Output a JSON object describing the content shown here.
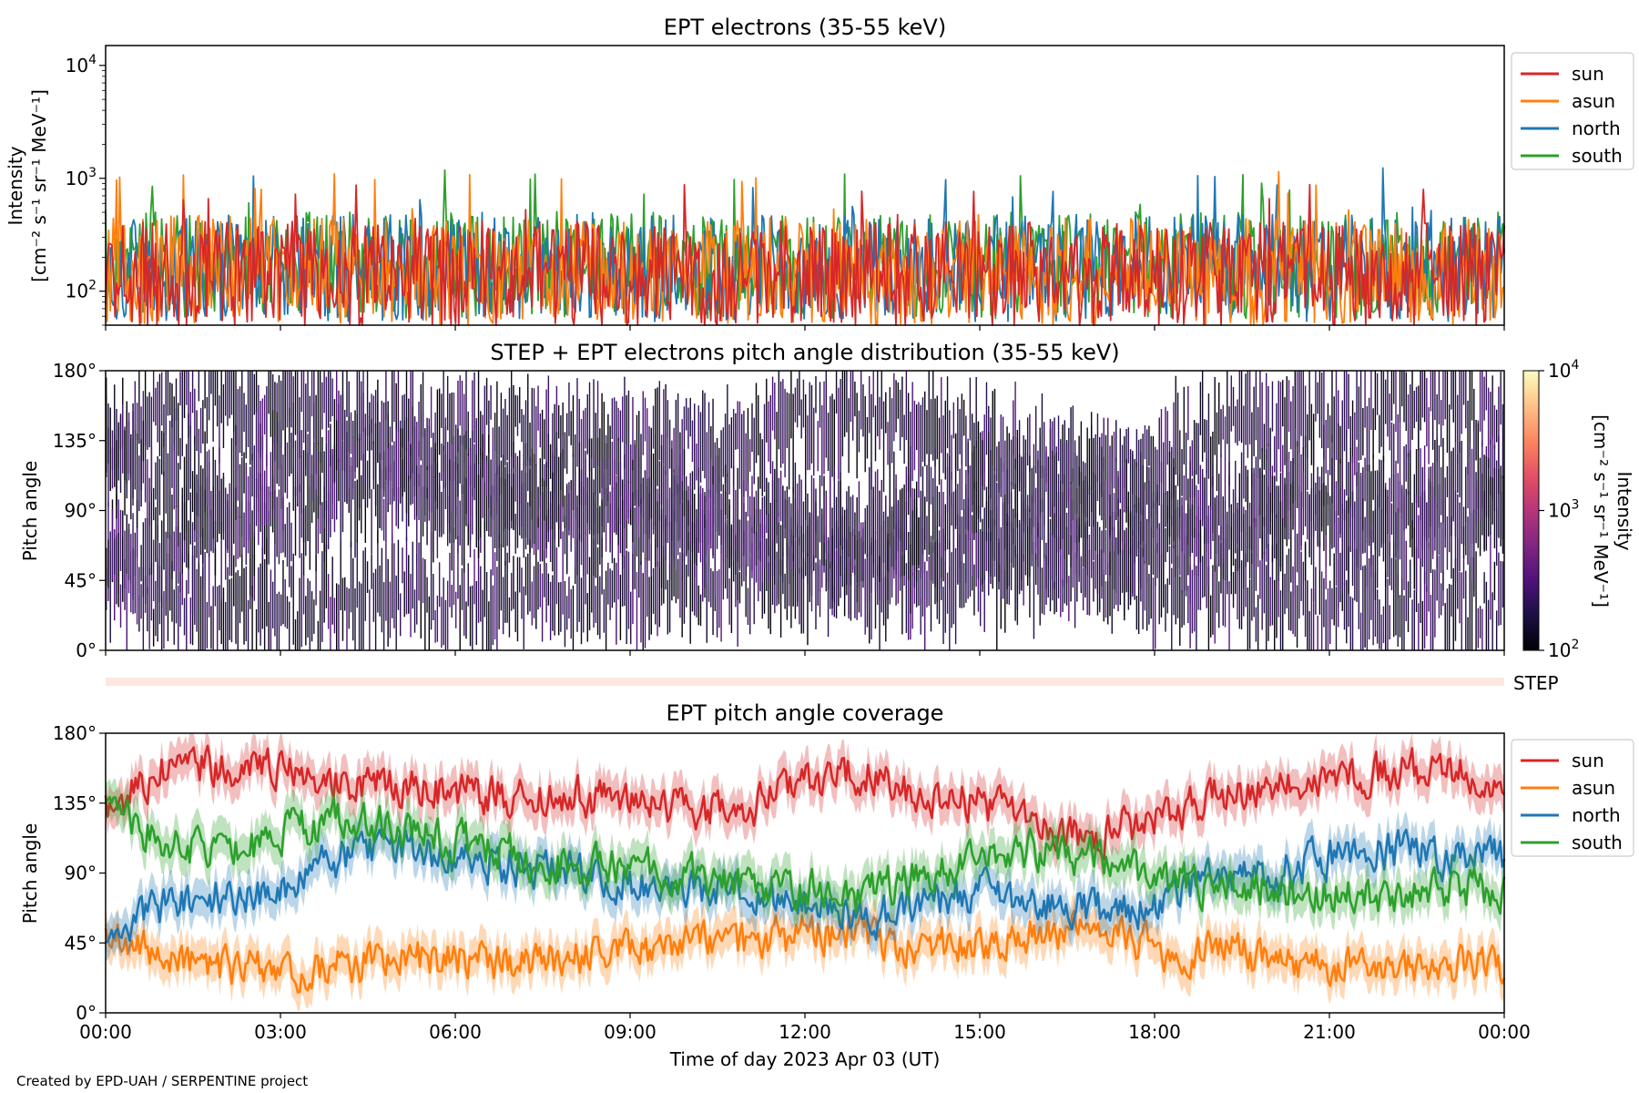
{
  "chart_data": [
    {
      "type": "line",
      "title": "EPT electrons (35-55 keV)",
      "ylabel_line1": "Intensity",
      "ylabel_line2": "[cm⁻² s⁻¹ sr⁻¹ MeV⁻¹]",
      "yscale": "log",
      "ylim": [
        50,
        15000
      ],
      "yticks": [
        {
          "value": 100,
          "base": "10",
          "exp": "2"
        },
        {
          "value": 1000,
          "base": "10",
          "exp": "3"
        },
        {
          "value": 10000,
          "base": "10",
          "exp": "4"
        }
      ],
      "xlim_hours": [
        0,
        24
      ],
      "legend_position": "upper-right-outside",
      "series": [
        {
          "name": "sun",
          "color": "#d62728",
          "typical": 140,
          "spread": 0.95
        },
        {
          "name": "asun",
          "color": "#ff7f0e",
          "typical": 150,
          "spread": 0.95
        },
        {
          "name": "north",
          "color": "#1f77b4",
          "typical": 160,
          "spread": 0.95
        },
        {
          "name": "south",
          "color": "#2ca02c",
          "typical": 170,
          "spread": 0.95
        }
      ],
      "plot_order": [
        "south",
        "north",
        "asun",
        "sun"
      ]
    },
    {
      "type": "heatmap",
      "title": "STEP + EPT electrons pitch angle distribution (35-55 keV)",
      "ylabel": "Pitch angle",
      "ylim": [
        0,
        180
      ],
      "yticks": [
        {
          "value": 0,
          "label": "0°"
        },
        {
          "value": 45,
          "label": "45°"
        },
        {
          "value": 90,
          "label": "90°"
        },
        {
          "value": 135,
          "label": "135°"
        },
        {
          "value": 180,
          "label": "180°"
        }
      ],
      "colorbar": {
        "label_line1": "Intensity",
        "label_line2": "[cm⁻² s⁻¹ sr⁻¹ MeV⁻¹]",
        "scale": "log",
        "range": [
          100,
          10000
        ],
        "ticks": [
          {
            "value": 100,
            "base": "10",
            "exp": "2"
          },
          {
            "value": 1000,
            "base": "10",
            "exp": "3"
          },
          {
            "value": 10000,
            "base": "10",
            "exp": "4"
          }
        ],
        "colormap": [
          "#000004",
          "#1c1044",
          "#4f127b",
          "#812581",
          "#b5367a",
          "#e55064",
          "#fb8761",
          "#fec287",
          "#fcfdbf"
        ]
      },
      "typical_intensity": 180,
      "step_strip": {
        "label": "STEP",
        "color": "#fde7e0"
      }
    },
    {
      "type": "line",
      "title": "EPT pitch angle coverage",
      "ylabel": "Pitch angle",
      "ylim": [
        0,
        180
      ],
      "yticks": [
        {
          "value": 0,
          "label": "0°"
        },
        {
          "value": 45,
          "label": "45°"
        },
        {
          "value": 90,
          "label": "90°"
        },
        {
          "value": 135,
          "label": "135°"
        },
        {
          "value": 180,
          "label": "180°"
        }
      ],
      "band_halfwidth_deg": 12,
      "legend_position": "upper-right-outside",
      "series": [
        {
          "name": "sun",
          "color": "#d62728",
          "mean_deg": [
            130,
            160,
            158,
            160,
            150,
            145,
            142,
            140,
            140,
            135,
            132,
            130,
            150,
            155,
            140,
            135,
            120,
            115,
            125,
            140,
            145,
            150,
            155,
            158,
            150
          ]
        },
        {
          "name": "asun",
          "color": "#ff7f0e",
          "mean_deg": [
            55,
            30,
            30,
            25,
            30,
            35,
            35,
            30,
            35,
            40,
            45,
            45,
            50,
            50,
            40,
            45,
            55,
            50,
            40,
            40,
            35,
            30,
            30,
            30,
            30
          ]
        },
        {
          "name": "north",
          "color": "#1f77b4",
          "mean_deg": [
            50,
            70,
            75,
            80,
            100,
            105,
            100,
            95,
            90,
            85,
            80,
            75,
            70,
            60,
            70,
            80,
            70,
            65,
            70,
            85,
            90,
            100,
            105,
            100,
            100
          ]
        },
        {
          "name": "south",
          "color": "#2ca02c",
          "mean_deg": [
            130,
            110,
            100,
            115,
            125,
            120,
            110,
            100,
            95,
            95,
            90,
            85,
            80,
            75,
            90,
            100,
            105,
            100,
            85,
            80,
            80,
            75,
            75,
            80,
            80
          ]
        }
      ],
      "plot_order": [
        "sun",
        "asun",
        "north",
        "south"
      ]
    }
  ],
  "shared_x": {
    "label": "Time of day 2023 Apr 03 (UT)",
    "range_hours": [
      0,
      24
    ],
    "ticks": [
      {
        "hour": 0,
        "label": "00:00"
      },
      {
        "hour": 3,
        "label": "03:00"
      },
      {
        "hour": 6,
        "label": "06:00"
      },
      {
        "hour": 9,
        "label": "09:00"
      },
      {
        "hour": 12,
        "label": "12:00"
      },
      {
        "hour": 15,
        "label": "15:00"
      },
      {
        "hour": 18,
        "label": "18:00"
      },
      {
        "hour": 21,
        "label": "21:00"
      },
      {
        "hour": 24,
        "label": "00:00"
      }
    ]
  },
  "credit": "Created by EPD-UAH / SERPENTINE project"
}
